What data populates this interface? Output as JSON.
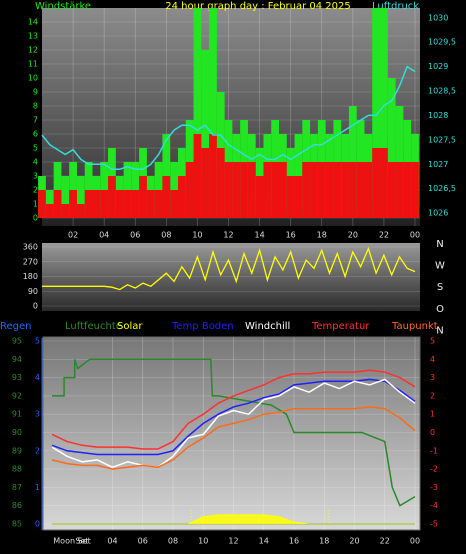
{
  "chart_data": [
    {
      "type": "combo",
      "title": "24 hour graph day : Februar 04 2025",
      "y_label": "Windstärke",
      "y2_label": "Luftdruck",
      "x": [
        0,
        0.5,
        1,
        1.5,
        2,
        2.5,
        3,
        3.5,
        4,
        4.5,
        5,
        5.5,
        6,
        6.5,
        7,
        7.5,
        8,
        8.5,
        9,
        9.5,
        10,
        10.5,
        11,
        11.5,
        12,
        12.5,
        13,
        13.5,
        14,
        14.5,
        15,
        15.5,
        16,
        16.5,
        17,
        17.5,
        18,
        18.5,
        19,
        19.5,
        20,
        20.5,
        21,
        21.5,
        22,
        22.5,
        23,
        23.5,
        24
      ],
      "xlim": [
        0,
        24
      ],
      "xticks": [
        {
          "value": 2,
          "label": "02"
        },
        {
          "value": 4,
          "label": "04"
        },
        {
          "value": 6,
          "label": "06"
        },
        {
          "value": 8,
          "label": "08"
        },
        10,
        12,
        14,
        16,
        18,
        20,
        22,
        {
          "value": 24,
          "label": "00"
        }
      ],
      "ylim": [
        0,
        15
      ],
      "yticks": [
        0,
        1,
        2,
        3,
        4,
        5,
        6,
        7,
        8,
        9,
        10,
        11,
        12,
        13,
        14
      ],
      "y2lim": [
        1025.9,
        1030.2
      ],
      "y2ticks": [
        1026,
        {
          "value": 1026.5,
          "label": "1026,5"
        },
        1027,
        {
          "value": 1027.5,
          "label": "1027,5"
        },
        1028,
        {
          "value": 1028.5,
          "label": "1028,5"
        },
        1029,
        {
          "value": 1029.5,
          "label": "1029,5"
        },
        1030
      ],
      "grid": true,
      "series": [
        {
          "type": "bar",
          "color": "#22e622",
          "values": [
            3,
            2,
            4,
            3,
            4,
            3,
            4,
            3,
            4,
            5,
            3,
            4,
            4,
            5,
            3,
            4,
            6,
            4,
            5,
            7,
            15,
            12,
            15,
            9,
            7,
            6,
            7,
            6,
            5,
            6,
            7,
            6,
            5,
            6,
            7,
            6,
            7,
            6,
            7,
            6,
            8,
            7,
            6,
            15,
            15,
            10,
            8,
            7,
            6
          ]
        },
        {
          "type": "bar",
          "color": "#ee1111",
          "values": [
            2,
            1,
            2,
            1,
            2,
            1,
            2,
            2,
            2,
            3,
            2,
            2,
            2,
            3,
            2,
            2,
            3,
            2,
            3,
            4,
            6,
            5,
            6,
            5,
            4,
            4,
            4,
            4,
            3,
            4,
            4,
            4,
            3,
            3,
            4,
            4,
            4,
            4,
            4,
            4,
            4,
            4,
            4,
            5,
            5,
            4,
            4,
            4,
            4
          ]
        },
        {
          "type": "line",
          "axis": "y2",
          "color": "#33dddd",
          "values": [
            1027.6,
            1027.4,
            1027.3,
            1027.2,
            1027.3,
            1027.1,
            1027.0,
            1027.0,
            1027.0,
            1026.9,
            1026.9,
            1026.95,
            1026.9,
            1026.9,
            1027.0,
            1027.2,
            1027.5,
            1027.7,
            1027.8,
            1027.8,
            1027.7,
            1027.8,
            1027.6,
            1027.6,
            1027.4,
            1027.3,
            1027.2,
            1027.1,
            1027.2,
            1027.1,
            1027.1,
            1027.2,
            1027.1,
            1027.2,
            1027.3,
            1027.4,
            1027.4,
            1027.5,
            1027.6,
            1027.7,
            1027.8,
            1027.9,
            1028.0,
            1028.0,
            1028.2,
            1028.3,
            1028.6,
            1029.0,
            1028.9
          ]
        }
      ]
    },
    {
      "type": "line",
      "x": [
        0,
        0.5,
        1,
        1.5,
        2,
        2.5,
        3,
        3.5,
        4,
        4.5,
        5,
        5.5,
        6,
        6.5,
        7,
        7.5,
        8,
        8.5,
        9,
        9.5,
        10,
        10.5,
        11,
        11.5,
        12,
        12.5,
        13,
        13.5,
        14,
        14.5,
        15,
        15.5,
        16,
        16.5,
        17,
        17.5,
        18,
        18.5,
        19,
        19.5,
        20,
        20.5,
        21,
        21.5,
        22,
        22.5,
        23,
        23.5,
        24
      ],
      "xlim": [
        0,
        24
      ],
      "ylim": [
        0,
        360
      ],
      "yticks": [
        0,
        90,
        180,
        270,
        360
      ],
      "direction_labels": [
        "N",
        "W",
        "S",
        "O",
        "N"
      ],
      "series": [
        {
          "color": "#ffff00",
          "values": [
            120,
            120,
            120,
            120,
            120,
            120,
            120,
            120,
            120,
            115,
            100,
            130,
            110,
            140,
            120,
            160,
            200,
            150,
            240,
            170,
            300,
            160,
            330,
            190,
            280,
            150,
            320,
            200,
            340,
            160,
            300,
            220,
            330,
            170,
            280,
            230,
            340,
            200,
            320,
            180,
            330,
            240,
            350,
            200,
            310,
            190,
            300,
            230,
            210
          ]
        }
      ]
    },
    {
      "type": "line",
      "x": [
        0,
        1,
        2,
        3,
        4,
        5,
        6,
        7,
        8,
        9,
        10,
        11,
        12,
        13,
        14,
        15,
        16,
        17,
        18,
        19,
        20,
        21,
        22,
        23,
        24
      ],
      "xlim": [
        0,
        24
      ],
      "xticks": [
        {
          "value": 4,
          "label": "04"
        },
        {
          "value": 6,
          "label": "06"
        },
        {
          "value": 8,
          "label": "08"
        },
        10,
        12,
        14,
        16,
        18,
        20,
        22,
        {
          "value": 24,
          "label": "00"
        }
      ],
      "ylim": [
        85,
        95
      ],
      "yticks": [
        85,
        86,
        87,
        88,
        89,
        90,
        91,
        92,
        93,
        94,
        95
      ],
      "y2lim": [
        -5,
        5
      ],
      "y2ticks": [
        -5,
        -4,
        -3,
        -2,
        -1,
        0,
        1,
        2,
        3,
        4,
        5
      ],
      "y3lim": [
        0,
        5
      ],
      "y3ticks": [
        0,
        1,
        2,
        3,
        4,
        5
      ],
      "annotations": [
        "Moon Set",
        "Set"
      ],
      "sun_markers": [
        9.2,
        18.3
      ],
      "grid": true,
      "series": [
        {
          "name": "Regen",
          "axis": "y3",
          "color": "#1e64ff",
          "values": [
            0,
            0,
            0,
            0,
            0,
            0,
            0,
            0,
            0,
            0,
            0,
            0,
            0,
            0,
            0,
            0,
            0,
            0,
            0,
            0,
            0,
            0,
            0,
            0,
            0
          ]
        },
        {
          "name": "Luftfeuchte",
          "axis": "y",
          "color": "#2a8a2a",
          "x": [
            0,
            0.8,
            0.8,
            1.5,
            1.5,
            1.7,
            2.5,
            10.5,
            10.6,
            11,
            14.5,
            15.5,
            16,
            20.5,
            22,
            22.5,
            23,
            24
          ],
          "values": [
            92,
            92,
            93,
            93,
            94,
            93.5,
            94,
            94,
            92,
            92,
            91.5,
            91,
            90,
            90,
            89.5,
            87,
            86,
            86.5
          ]
        },
        {
          "name": "Solar",
          "axis": "y3",
          "type": "area",
          "color": "#ffff00",
          "values": [
            0,
            0,
            0,
            0,
            0,
            0,
            0,
            0,
            0,
            0,
            0.2,
            0.25,
            0.25,
            0.25,
            0.25,
            0.2,
            0.05,
            0,
            0,
            0,
            0,
            0,
            0,
            0,
            0
          ]
        },
        {
          "name": "Temp Boden",
          "axis": "y2",
          "color": "#2020ff",
          "values": [
            -0.7,
            -1.0,
            -1.1,
            -1.2,
            -1.2,
            -1.2,
            -1.2,
            -1.2,
            -1.0,
            -0.2,
            0.5,
            1.0,
            1.4,
            1.6,
            1.9,
            2.1,
            2.6,
            2.7,
            2.8,
            2.8,
            2.8,
            2.9,
            2.8,
            2.3,
            1.7
          ]
        },
        {
          "name": "Windchill",
          "axis": "y2",
          "color": "#ffffff",
          "values": [
            -0.8,
            -1.3,
            -1.6,
            -1.5,
            -1.9,
            -1.6,
            -1.8,
            -1.9,
            -1.3,
            -0.3,
            -0.1,
            0.9,
            1.2,
            1.0,
            1.8,
            2.0,
            2.5,
            2.2,
            2.7,
            2.4,
            2.8,
            2.6,
            2.9,
            2.2,
            1.6
          ]
        },
        {
          "name": "Temperatur",
          "axis": "y2",
          "color": "#ff3030",
          "values": [
            -0.1,
            -0.5,
            -0.7,
            -0.8,
            -0.8,
            -0.8,
            -0.9,
            -0.9,
            -0.5,
            0.5,
            1.0,
            1.6,
            2.0,
            2.3,
            2.6,
            3.0,
            3.2,
            3.2,
            3.3,
            3.3,
            3.3,
            3.4,
            3.3,
            3.0,
            2.5
          ]
        },
        {
          "name": "Taupunkt",
          "axis": "y2",
          "color": "#ff6a1a",
          "values": [
            -1.5,
            -1.7,
            -1.8,
            -1.8,
            -2.0,
            -1.9,
            -1.8,
            -1.9,
            -1.5,
            -0.8,
            -0.3,
            0.3,
            0.5,
            0.7,
            1.0,
            1.1,
            1.3,
            1.3,
            1.3,
            1.3,
            1.3,
            1.4,
            1.3,
            0.8,
            0.1
          ]
        }
      ]
    }
  ]
}
